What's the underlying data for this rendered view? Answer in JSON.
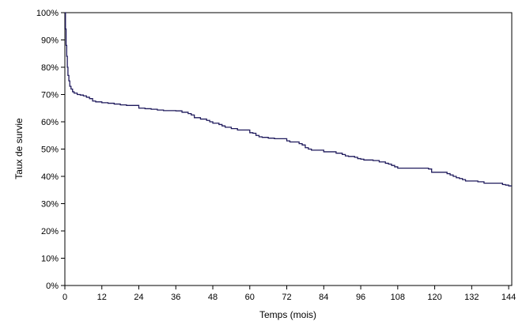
{
  "chart_data": {
    "type": "line",
    "xlabel": "Temps (mois)",
    "ylabel": "Taux de survie",
    "xlim": [
      0,
      145
    ],
    "ylim": [
      0,
      100
    ],
    "x_ticks": [
      0,
      12,
      24,
      36,
      48,
      60,
      72,
      84,
      96,
      108,
      120,
      132,
      144
    ],
    "y_ticks": [
      0,
      10,
      20,
      30,
      40,
      50,
      60,
      70,
      80,
      90,
      100
    ],
    "y_tick_labels": [
      "0%",
      "10%",
      "20%",
      "30%",
      "40%",
      "50%",
      "60%",
      "70%",
      "80%",
      "90%",
      "100%"
    ],
    "grid": false,
    "line_color": "#1f1a5c",
    "series": [
      {
        "step": true,
        "x": [
          0,
          0.2,
          0.4,
          0.6,
          0.8,
          1.0,
          1.3,
          1.6,
          2.0,
          2.5,
          3.0,
          4.0,
          5.0,
          6.0,
          7.0,
          8.0,
          9.0,
          10.0,
          12.0,
          14.0,
          16.0,
          18.0,
          20.0,
          24.0,
          26.0,
          28.0,
          30.0,
          32.0,
          36.0,
          38.0,
          40.0,
          41.0,
          42.0,
          44.0,
          46.0,
          47.0,
          48.0,
          50.0,
          51.0,
          52.0,
          54.0,
          56.0,
          60.0,
          61.0,
          62.0,
          63.0,
          64.0,
          66.0,
          68.0,
          72.0,
          73.0,
          76.0,
          77.0,
          78.0,
          79.0,
          80.0,
          84.0,
          88.0,
          90.0,
          91.0,
          92.0,
          94.0,
          95.0,
          96.0,
          97.0,
          100.0,
          102.0,
          104.0,
          105.0,
          106.0,
          107.0,
          108.0,
          118.0,
          119.0,
          124.0,
          125.0,
          126.0,
          127.0,
          128.0,
          129.0,
          130.0,
          134.0,
          136.0,
          142.0,
          143.0,
          144.0
        ],
        "y": [
          100,
          94,
          88,
          84,
          80,
          77,
          75,
          73,
          72,
          71,
          70.5,
          70,
          69.8,
          69.5,
          69,
          68.5,
          67.6,
          67.3,
          67,
          66.8,
          66.5,
          66.2,
          66,
          65,
          64.8,
          64.6,
          64.3,
          64.1,
          64,
          63.5,
          63,
          62.5,
          61.5,
          61,
          60.5,
          60,
          59.5,
          59,
          58.5,
          58,
          57.5,
          57,
          56,
          55.8,
          55,
          54.5,
          54.3,
          54,
          53.8,
          53,
          52.6,
          52,
          51.5,
          50.5,
          50,
          49.6,
          49,
          48.5,
          48,
          47.5,
          47.3,
          47,
          46.5,
          46.3,
          46,
          45.8,
          45.3,
          44.8,
          44.5,
          44,
          43.5,
          43,
          42.7,
          41.5,
          41,
          40.5,
          40,
          39.5,
          39.2,
          38.8,
          38.3,
          38,
          37.5,
          37,
          36.8,
          36.5
        ]
      }
    ]
  }
}
